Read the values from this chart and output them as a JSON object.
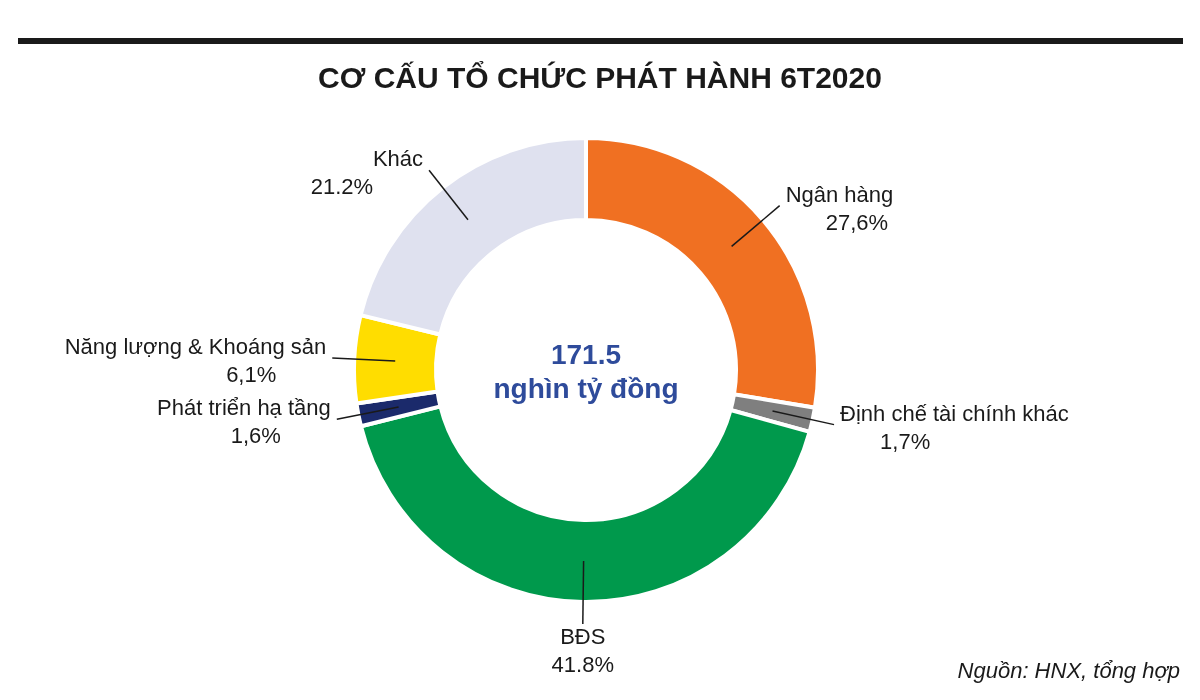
{
  "chart_data": {
    "type": "donut",
    "title": "CƠ CẤU TỔ CHỨC PHÁT HÀNH 6T2020",
    "categories": [
      "Ngân hàng",
      "Định chế tài chính khác",
      "BĐS",
      "Phát triển hạ tầng",
      "Năng lượng & Khoáng sản",
      "Khác"
    ],
    "values": [
      27.6,
      1.7,
      41.8,
      1.6,
      6.1,
      21.2
    ],
    "colors": [
      "#f07022",
      "#7f7f7f",
      "#00994c",
      "#1b2a6b",
      "#ffdd00",
      "#dfe1ef"
    ],
    "value_labels": [
      "27,6%",
      "1,7%",
      "41.8%",
      "1,6%",
      "6,1%",
      "21.2%"
    ],
    "annotations": [
      "171.5 nghìn tỷ đồng",
      "Nguồn: HNX, tổng hợp"
    ]
  }
}
